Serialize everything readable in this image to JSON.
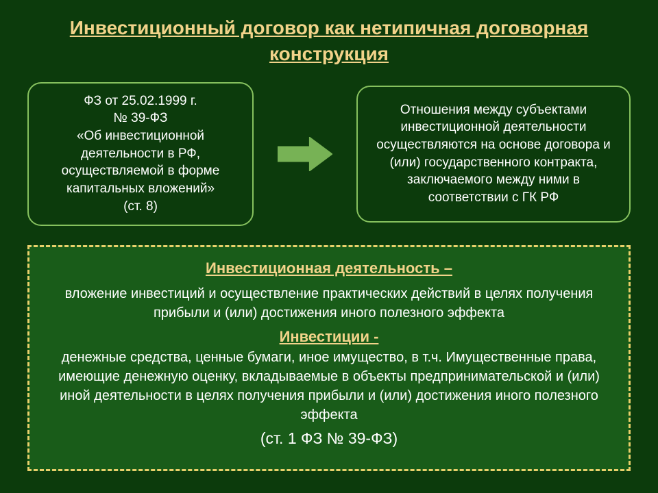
{
  "colors": {
    "background": "#0c3b0c",
    "title_color": "#f2d38a",
    "box_border": "#86c15e",
    "box_text": "#ffffff",
    "arrow_fill": "#77b255",
    "dashed_border": "#e9cf6b",
    "dashed_fill": "#195c19",
    "heading_color": "#f2d38a",
    "body_text": "#ffffff"
  },
  "layout": {
    "title_fontsize": 28,
    "box_fontsize": 19,
    "box_border_width": 2,
    "dashed_border_width": 3,
    "dashed_dash": "12 8",
    "left_box_w": 330,
    "left_box_h": 210,
    "right_box_w": 400,
    "right_box_h": 200,
    "arrow_w": 80,
    "arrow_h": 50,
    "dashed_w": 880,
    "dashed_h": 330,
    "dashed_pad": 16,
    "def_heading_fontsize": 22,
    "def_body_fontsize": 20,
    "cite_fontsize": 23
  },
  "title": "Инвестиционный договор как нетипичная договорная конструкция",
  "left_box": "ФЗ  от 25.02.1999 г.\n№ 39-ФЗ\n«Об инвестиционной деятельности  в РФ, осуществляемой в форме капитальных вложений»\n(ст. 8)",
  "right_box": "Отношения между субъектами инвестиционной деятельности осуществляются на основе договора и (или) государственного контракта, заключаемого между ними в соответствии с ГК РФ",
  "def1_heading": "Инвестиционная деятельность – ",
  "def1_body": "вложение инвестиций и осуществление практических действий в целях получения прибыли и (или) достижения иного полезного эффекта",
  "def2_heading": "Инвестиции -  ",
  "def2_body": "денежные средства, ценные бумаги, иное имущество, в т.ч. Имущественные права, имеющие денежную оценку, вкладываемые в объекты предпринимательской и (или) иной деятельности в целях получения прибыли и (или) достижения иного полезного эффекта",
  "cite": "(ст. 1 ФЗ № 39-ФЗ)"
}
